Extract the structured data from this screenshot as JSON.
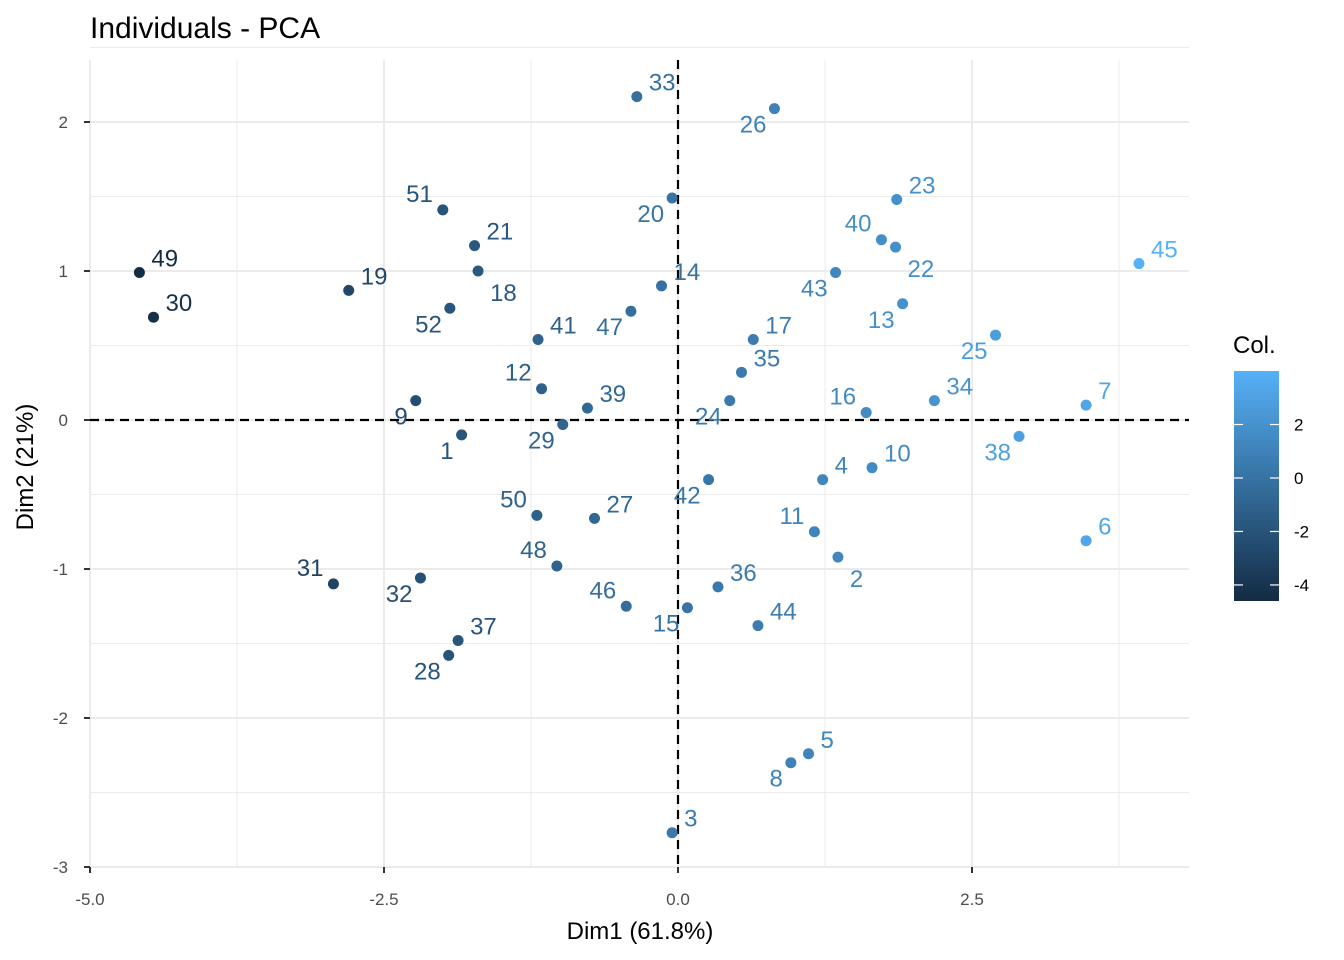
{
  "chart_data": {
    "type": "scatter",
    "title": "Individuals - PCA",
    "xlabel": "Dim1 (61.8%)",
    "ylabel": "Dim2 (21%)",
    "xlim": [
      -5.0,
      4.3
    ],
    "ylim": [
      -3.0,
      2.4
    ],
    "x_ticks": [
      -5.0,
      -2.5,
      0.0,
      2.5
    ],
    "x_tick_labels": [
      "-5.0",
      "-2.5",
      "0.0",
      "2.5"
    ],
    "y_ticks": [
      -3,
      -2,
      -1,
      0,
      1,
      2
    ],
    "y_tick_labels": [
      "-3",
      "-2",
      "-1",
      "0",
      "1",
      "2"
    ],
    "grid": true,
    "reference_lines": [
      {
        "axis": "x",
        "value": 0,
        "style": "dashed"
      },
      {
        "axis": "y",
        "value": 0,
        "style": "dashed"
      }
    ],
    "legend": {
      "title": "Col.",
      "placement": "right",
      "type": "colorbar",
      "range": [
        -4.6,
        4.0
      ],
      "ticks": [
        2,
        0,
        -2,
        -4
      ],
      "tick_labels": [
        "2",
        "0",
        "-2",
        "-4"
      ],
      "low_color": "#132B43",
      "high_color": "#56B1F7"
    },
    "points": [
      {
        "label": "1",
        "x": -1.84,
        "y": -0.1,
        "col": -1.9,
        "pos": "bl"
      },
      {
        "label": "2",
        "x": 1.36,
        "y": -0.92,
        "col": 1.3,
        "pos": "br"
      },
      {
        "label": "3",
        "x": -0.05,
        "y": -2.77,
        "col": 0.4,
        "pos": "tr"
      },
      {
        "label": "4",
        "x": 1.23,
        "y": -0.4,
        "col": 1.2,
        "pos": "tr"
      },
      {
        "label": "5",
        "x": 1.11,
        "y": -2.24,
        "col": 1.1,
        "pos": "tr"
      },
      {
        "label": "6",
        "x": 3.47,
        "y": -0.81,
        "col": 3.3,
        "pos": "tr"
      },
      {
        "label": "7",
        "x": 3.47,
        "y": 0.1,
        "col": 3.3,
        "pos": "tr"
      },
      {
        "label": "8",
        "x": 0.96,
        "y": -2.3,
        "col": 1.0,
        "pos": "bl"
      },
      {
        "label": "9",
        "x": -2.23,
        "y": 0.13,
        "col": -2.4,
        "pos": "bl"
      },
      {
        "label": "10",
        "x": 1.65,
        "y": -0.32,
        "col": 1.5,
        "pos": "tr"
      },
      {
        "label": "11",
        "x": 1.16,
        "y": -0.75,
        "col": 1.1,
        "pos": "tl"
      },
      {
        "label": "12",
        "x": -1.16,
        "y": 0.21,
        "col": -1.2,
        "pos": "tl"
      },
      {
        "label": "13",
        "x": 1.91,
        "y": 0.78,
        "col": 1.9,
        "pos": "bl"
      },
      {
        "label": "14",
        "x": -0.14,
        "y": 0.9,
        "col": -0.1,
        "pos": "tr"
      },
      {
        "label": "15",
        "x": 0.08,
        "y": -1.26,
        "col": 0.1,
        "pos": "bl"
      },
      {
        "label": "16",
        "x": 1.6,
        "y": 0.05,
        "col": 1.5,
        "pos": "tl"
      },
      {
        "label": "17",
        "x": 0.64,
        "y": 0.54,
        "col": 0.6,
        "pos": "tr"
      },
      {
        "label": "18",
        "x": -1.7,
        "y": 1.0,
        "col": -1.6,
        "pos": "br"
      },
      {
        "label": "19",
        "x": -2.8,
        "y": 0.87,
        "col": -2.8,
        "pos": "tr"
      },
      {
        "label": "20",
        "x": -0.05,
        "y": 1.49,
        "col": 0.0,
        "pos": "bl"
      },
      {
        "label": "21",
        "x": -1.73,
        "y": 1.17,
        "col": -1.7,
        "pos": "tr"
      },
      {
        "label": "22",
        "x": 1.85,
        "y": 1.16,
        "col": 1.8,
        "pos": "br"
      },
      {
        "label": "23",
        "x": 1.86,
        "y": 1.48,
        "col": 1.9,
        "pos": "tr"
      },
      {
        "label": "24",
        "x": 0.44,
        "y": 0.13,
        "col": 0.4,
        "pos": "bl"
      },
      {
        "label": "25",
        "x": 2.7,
        "y": 0.57,
        "col": 2.7,
        "pos": "bl"
      },
      {
        "label": "26",
        "x": 0.82,
        "y": 2.09,
        "col": 0.9,
        "pos": "bl"
      },
      {
        "label": "27",
        "x": -0.71,
        "y": -0.66,
        "col": -0.7,
        "pos": "tr"
      },
      {
        "label": "28",
        "x": -1.95,
        "y": -1.58,
        "col": -2.0,
        "pos": "bl"
      },
      {
        "label": "29",
        "x": -0.98,
        "y": -0.03,
        "col": -0.9,
        "pos": "bl"
      },
      {
        "label": "30",
        "x": -4.46,
        "y": 0.69,
        "col": -4.3,
        "pos": "tr"
      },
      {
        "label": "31",
        "x": -2.93,
        "y": -1.1,
        "col": -3.0,
        "pos": "tl"
      },
      {
        "label": "32",
        "x": -2.19,
        "y": -1.06,
        "col": -2.2,
        "pos": "bl"
      },
      {
        "label": "33",
        "x": -0.35,
        "y": 2.17,
        "col": -0.2,
        "pos": "tr"
      },
      {
        "label": "34",
        "x": 2.18,
        "y": 0.13,
        "col": 2.1,
        "pos": "tr"
      },
      {
        "label": "35",
        "x": 0.54,
        "y": 0.32,
        "col": 0.5,
        "pos": "tr"
      },
      {
        "label": "36",
        "x": 0.34,
        "y": -1.12,
        "col": 0.4,
        "pos": "tr"
      },
      {
        "label": "37",
        "x": -1.87,
        "y": -1.48,
        "col": -1.9,
        "pos": "tr"
      },
      {
        "label": "38",
        "x": 2.9,
        "y": -0.11,
        "col": 2.9,
        "pos": "bl"
      },
      {
        "label": "39",
        "x": -0.77,
        "y": 0.08,
        "col": -0.7,
        "pos": "tr"
      },
      {
        "label": "40",
        "x": 1.73,
        "y": 1.21,
        "col": 1.8,
        "pos": "tl"
      },
      {
        "label": "41",
        "x": -1.19,
        "y": 0.54,
        "col": -1.1,
        "pos": "tr"
      },
      {
        "label": "42",
        "x": 0.26,
        "y": -0.4,
        "col": 0.2,
        "pos": "bl"
      },
      {
        "label": "43",
        "x": 1.34,
        "y": 0.99,
        "col": 1.3,
        "pos": "bl"
      },
      {
        "label": "44",
        "x": 0.68,
        "y": -1.38,
        "col": 0.6,
        "pos": "tr"
      },
      {
        "label": "45",
        "x": 3.92,
        "y": 1.05,
        "col": 4.0,
        "pos": "tr"
      },
      {
        "label": "46",
        "x": -0.44,
        "y": -1.25,
        "col": -0.4,
        "pos": "tl"
      },
      {
        "label": "47",
        "x": -0.4,
        "y": 0.73,
        "col": -0.3,
        "pos": "bl"
      },
      {
        "label": "48",
        "x": -1.03,
        "y": -0.98,
        "col": -1.0,
        "pos": "tl"
      },
      {
        "label": "49",
        "x": -4.58,
        "y": 0.99,
        "col": -4.6,
        "pos": "tr"
      },
      {
        "label": "50",
        "x": -1.2,
        "y": -0.64,
        "col": -1.2,
        "pos": "tl"
      },
      {
        "label": "51",
        "x": -2.0,
        "y": 1.41,
        "col": -2.0,
        "pos": "tl"
      },
      {
        "label": "52",
        "x": -1.94,
        "y": 0.75,
        "col": -1.9,
        "pos": "bl"
      }
    ]
  }
}
